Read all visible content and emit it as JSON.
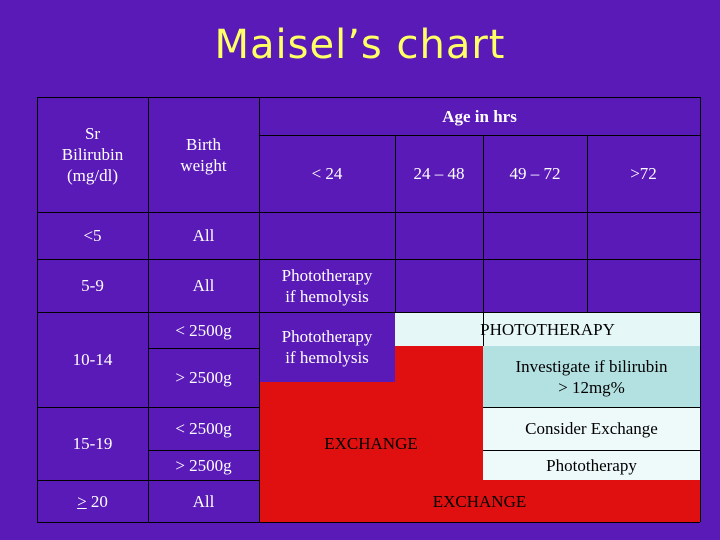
{
  "title": "Maisel’s chart",
  "header": {
    "sr_bilirubin": "Sr\nBilirubin\n(mg/dl)",
    "birth_weight": "Birth\nweight",
    "age_in_hrs": "Age in hrs",
    "age_cols": [
      "< 24",
      "24 – 48",
      "49 – 72",
      ">72"
    ]
  },
  "rows": {
    "r1": {
      "bilirubin": "<5",
      "weight": "All"
    },
    "r2": {
      "bilirubin": "5-9",
      "weight": "All",
      "lt24": "Phototherapy\nif hemolysis"
    },
    "r3": {
      "bilirubin": "10-14",
      "weight_a": "< 2500g",
      "weight_b": "> 2500g",
      "lt24": "Phototherapy\nif hemolysis",
      "phototherapy": "PHOTOTHERAPY",
      "investigate": "Investigate if bilirubin\n> 12mg%"
    },
    "r4": {
      "bilirubin": "15-19",
      "weight_a": "< 2500g",
      "weight_b": "> 2500g",
      "exchange": "EXCHANGE",
      "consider_exchange": "Consider Exchange",
      "phototherapy": "Phototherapy"
    },
    "r5": {
      "bilirubin_symbol": ">",
      "bilirubin_value": " 20",
      "weight": "All",
      "exchange": "EXCHANGE"
    }
  }
}
